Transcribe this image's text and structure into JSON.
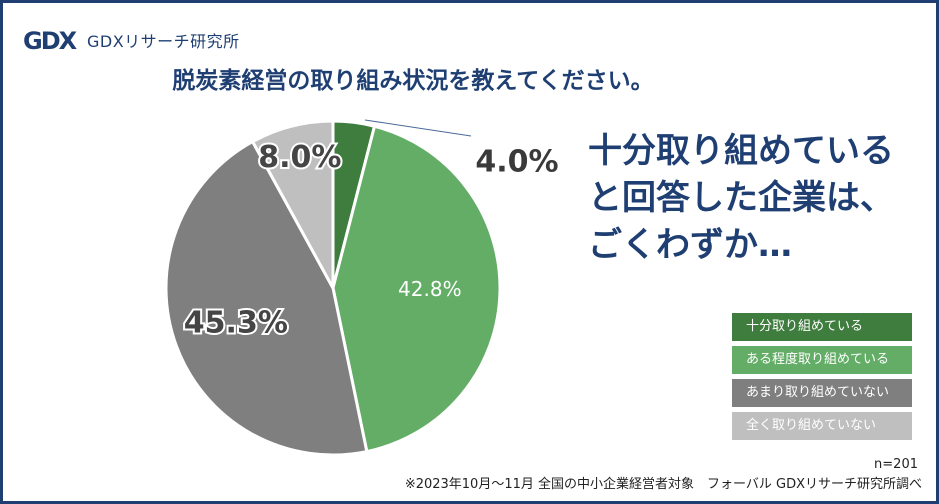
{
  "brand": {
    "logo_letters": "GDX",
    "name": "GDXリサーチ研究所"
  },
  "title": "脱炭素経営の取り組み状況を教えてください。",
  "headline": [
    "十分取り組めている",
    "と回答した企業は、",
    "ごくわずか…"
  ],
  "footer": {
    "sample": "n=201",
    "note": "※2023年10月～11月 全国の中小企業経営者対象　フォーバル GDXリサーチ研究所調べ"
  },
  "colors": {
    "border": "#1f3f73",
    "title": "#1f3f73"
  },
  "chart_data": {
    "type": "pie",
    "unit": "%",
    "categories": [
      "十分取り組めている",
      "ある程度取り組めている",
      "あまり取り組めていない",
      "全く取り組めていない"
    ],
    "values": [
      4.0,
      42.8,
      45.3,
      8.0
    ],
    "labels": [
      "4.0%",
      "42.8%",
      "45.3%",
      "8.0%"
    ],
    "colors": [
      "#3f7d3f",
      "#63ad66",
      "#7f7f7f",
      "#bfbfbf"
    ],
    "legend_placement": "bottom-right",
    "start": "top",
    "direction": "clockwise"
  }
}
